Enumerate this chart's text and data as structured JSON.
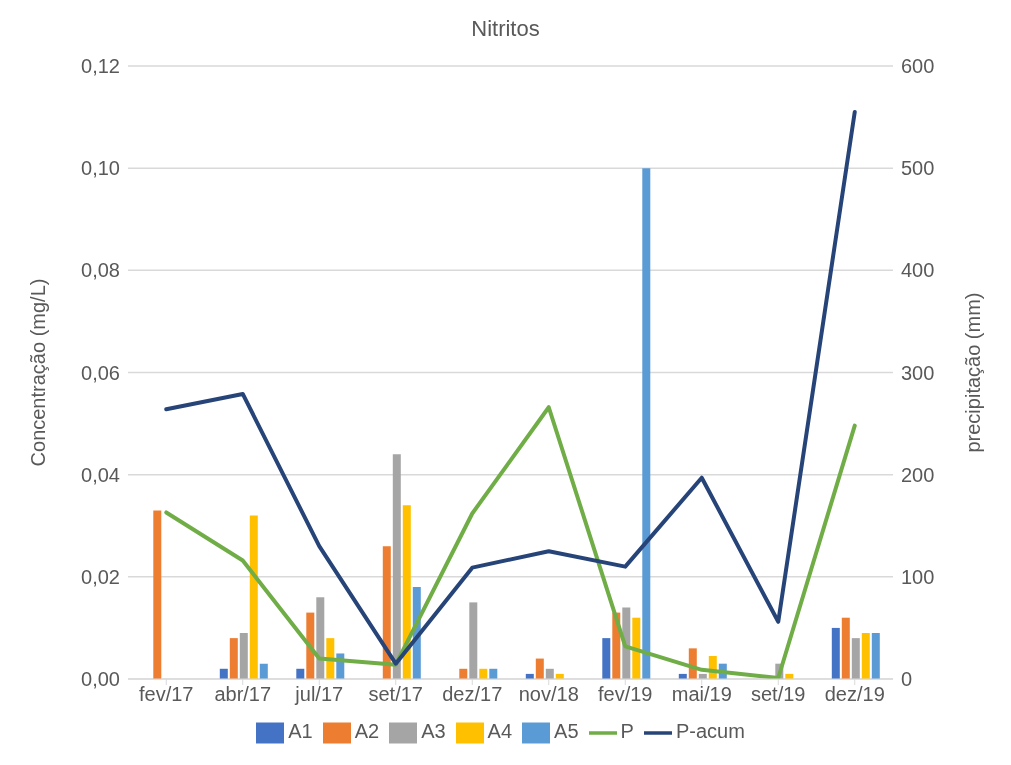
{
  "chart_data": {
    "type": "bar",
    "title": "Nitritos",
    "ylabel": "Concentração (mg/L)",
    "y2label": "precipitação (mm)",
    "categories": [
      "fev/17",
      "abr/17",
      "jul/17",
      "set/17",
      "dez/17",
      "nov/18",
      "fev/19",
      "mai/19",
      "set/19",
      "dez/19"
    ],
    "series": [
      {
        "name": "A1",
        "color": "#4472c4",
        "values": [
          null,
          0.002,
          0.002,
          null,
          null,
          0.001,
          0.008,
          0.001,
          null,
          0.01
        ]
      },
      {
        "name": "A2",
        "color": "#ed7d31",
        "values": [
          0.033,
          0.008,
          0.013,
          0.026,
          0.002,
          0.004,
          0.013,
          0.006,
          null,
          0.012
        ]
      },
      {
        "name": "A3",
        "color": "#a5a5a5",
        "values": [
          null,
          0.009,
          0.016,
          0.044,
          0.015,
          0.002,
          0.014,
          0.001,
          0.003,
          0.008
        ]
      },
      {
        "name": "A4",
        "color": "#ffc000",
        "values": [
          null,
          0.032,
          0.008,
          0.034,
          0.002,
          0.001,
          0.012,
          0.0045,
          0.001,
          0.009
        ]
      },
      {
        "name": "A5",
        "color": "#5b9bd5",
        "values": [
          null,
          0.003,
          0.005,
          0.018,
          0.002,
          null,
          0.1,
          0.003,
          null,
          0.009
        ]
      },
      {
        "name": "P",
        "type": "line",
        "axis": "y2",
        "color": "#70ad47",
        "values": [
          163,
          116,
          20,
          14,
          162,
          266,
          32,
          9,
          1,
          248
        ]
      },
      {
        "name": "P-acum",
        "type": "line",
        "axis": "y2",
        "color": "#264478",
        "values": [
          264,
          279,
          130,
          15,
          109,
          125,
          110,
          197,
          56,
          555
        ]
      }
    ],
    "ylim": [
      0,
      0.12
    ],
    "yticks": [
      {
        "value": 0,
        "label": "0,00"
      },
      {
        "value": 0.02,
        "label": "0,02"
      },
      {
        "value": 0.04,
        "label": "0,04"
      },
      {
        "value": 0.06,
        "label": "0,06"
      },
      {
        "value": 0.08,
        "label": "0,08"
      },
      {
        "value": 0.1,
        "label": "0,10"
      },
      {
        "value": 0.12,
        "label": "0,12"
      }
    ],
    "y2lim": [
      0,
      600
    ],
    "y2ticks": [
      0,
      100,
      200,
      300,
      400,
      500,
      600
    ],
    "grid": "y",
    "legend": "bottom",
    "marker": "none",
    "line_style": "solid"
  }
}
